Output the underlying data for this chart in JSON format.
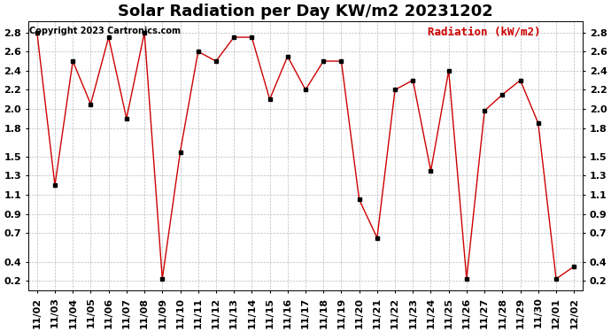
{
  "title": "Solar Radiation per Day KW/m2 20231202",
  "copyright_text": "Copyright 2023 Cartronics.com",
  "legend_label": "Radiation (kW/m2)",
  "dates": [
    "11/02",
    "11/03",
    "11/04",
    "11/05",
    "11/06",
    "11/07",
    "11/08",
    "11/09",
    "11/10",
    "11/11",
    "11/12",
    "11/13",
    "11/14",
    "11/15",
    "11/16",
    "11/17",
    "11/18",
    "11/19",
    "11/20",
    "11/21",
    "11/22",
    "11/23",
    "11/24",
    "11/25",
    "11/26",
    "11/27",
    "11/28",
    "11/29",
    "11/30",
    "12/01",
    "12/02"
  ],
  "values": [
    2.8,
    1.2,
    2.5,
    2.05,
    2.75,
    1.9,
    2.8,
    0.22,
    1.55,
    2.6,
    2.5,
    2.75,
    2.75,
    2.1,
    2.55,
    2.2,
    2.5,
    2.5,
    1.05,
    0.65,
    2.2,
    2.3,
    1.35,
    2.4,
    0.22,
    1.98,
    2.15,
    2.3,
    1.85,
    0.22,
    0.35
  ],
  "line_color": "#cc0000",
  "marker": "s",
  "marker_size": 2.5,
  "ylim": [
    0.1,
    2.92
  ],
  "yticks": [
    0.2,
    0.4,
    0.7,
    0.9,
    1.1,
    1.3,
    1.5,
    1.8,
    2.0,
    2.2,
    2.4,
    2.6,
    2.8
  ],
  "background_color": "#ffffff",
  "grid_color": "#bbbbbb",
  "title_fontsize": 13,
  "tick_fontsize": 8,
  "copyright_fontsize": 7,
  "legend_fontsize": 9
}
